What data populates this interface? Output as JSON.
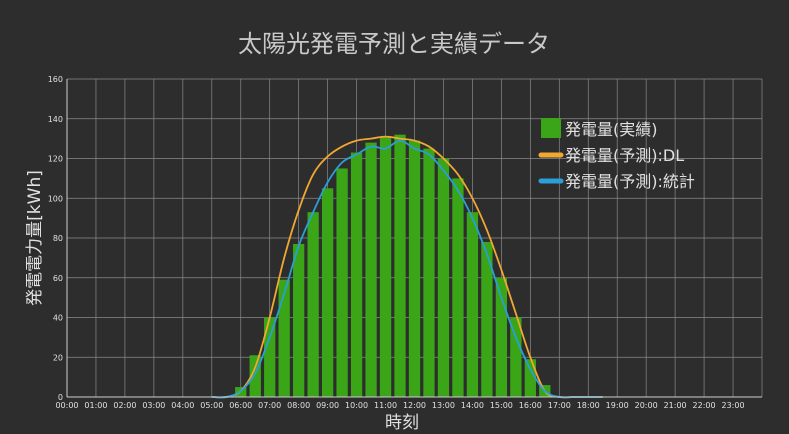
{
  "chart_data": {
    "type": "bar",
    "title": "太陽光発電予測と実績データ",
    "xlabel": "時刻",
    "ylabel": "発電電力量[kWh]",
    "ylim": [
      0,
      160
    ],
    "y_ticks": [
      "0",
      "20",
      "40",
      "60",
      "80",
      "100",
      "120",
      "140",
      "160"
    ],
    "x_ticks": [
      "00:00",
      "01:00",
      "02:00",
      "03:00",
      "04:00",
      "05:00",
      "06:00",
      "07:00",
      "08:00",
      "09:00",
      "10:00",
      "11:00",
      "12:00",
      "13:00",
      "14:00",
      "15:00",
      "16:00",
      "17:00",
      "18:00",
      "19:00",
      "20:00",
      "21:00",
      "22:00",
      "23:00"
    ],
    "grid": true,
    "legend_position": "top-right",
    "x_unit": "half-hour slots from 00:00",
    "bars": {
      "name": "発電量(実績)",
      "color": "#3aa516",
      "x": [
        11.5,
        12,
        12.5,
        13,
        13.5,
        14,
        14.5,
        15,
        15.5,
        16,
        16.5,
        17,
        17.5,
        18,
        18.5,
        19,
        19.5,
        20,
        20.5,
        21,
        21.5,
        22,
        22.5,
        23,
        23.5,
        24,
        24.5,
        25,
        25.5,
        26,
        26.5,
        27,
        27.5,
        28,
        28.5,
        29,
        29.5,
        30,
        30.5,
        31,
        31.5,
        32,
        32.5,
        33,
        33.5,
        34,
        34.5,
        35
      ],
      "values": [
        0,
        5,
        0,
        21,
        0,
        40,
        0,
        59,
        0,
        77,
        0,
        93,
        0,
        105,
        0,
        115,
        0,
        123,
        0,
        128,
        0,
        131,
        0,
        132,
        0,
        129,
        0,
        125,
        0,
        120,
        0,
        110,
        0,
        93,
        0,
        78,
        0,
        60,
        0,
        40,
        0,
        19,
        0,
        6,
        0,
        0,
        0,
        0
      ]
    },
    "series": [
      {
        "name": "発電量(予測):DL",
        "color": "#f0a830",
        "x": [
          10,
          11,
          12,
          13,
          14,
          15,
          16,
          17,
          18,
          19,
          20,
          21,
          22,
          23,
          24,
          25,
          26,
          27,
          28,
          29,
          30,
          31,
          32,
          33,
          34,
          35,
          36,
          37
        ],
        "values": [
          0,
          0,
          3,
          15,
          40,
          70,
          94,
          112,
          121,
          126,
          129,
          130,
          131,
          130,
          129,
          126,
          120,
          112,
          100,
          84,
          64,
          42,
          20,
          3,
          0,
          0,
          0,
          0
        ]
      },
      {
        "name": "発電量(予測):統計",
        "color": "#2a9fd8",
        "x": [
          10,
          11,
          12,
          13,
          14,
          15,
          16,
          17,
          18,
          19,
          20,
          21,
          22,
          23,
          24,
          25,
          26,
          27,
          28,
          29,
          30,
          31,
          32,
          33,
          34,
          35,
          36,
          37
        ],
        "values": [
          0,
          0,
          3,
          12,
          30,
          52,
          76,
          93,
          108,
          118,
          122,
          126,
          125,
          129,
          125,
          122,
          114,
          104,
          90,
          72,
          50,
          30,
          14,
          3,
          0,
          0,
          0,
          0
        ]
      }
    ]
  },
  "legend": {
    "items": [
      {
        "label": "発電量(実績)",
        "symbol": "box",
        "color": "#3aa516"
      },
      {
        "label": "発電量(予測):DL",
        "symbol": "line",
        "color": "#f0a830"
      },
      {
        "label": "発電量(予測):統計",
        "symbol": "line",
        "color": "#2a9fd8"
      }
    ]
  },
  "colors": {
    "background": "#2d2d2d",
    "grid": "#8a8a8a",
    "axis": "#d0d0d0",
    "text": "#e0e0e0",
    "title": "#c8c8c8"
  }
}
